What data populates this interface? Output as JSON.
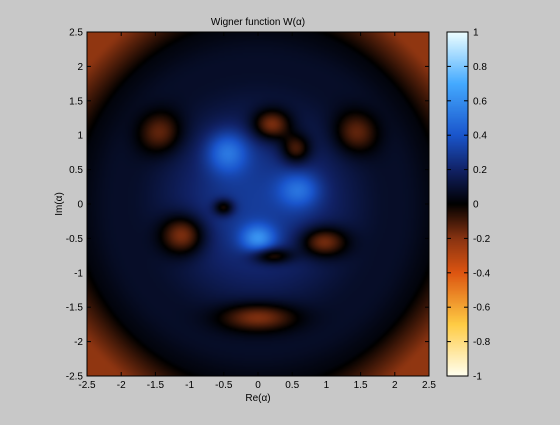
{
  "chart_data": {
    "type": "heatmap",
    "title": "Wigner function W(α)",
    "xlabel": "Re(α)",
    "ylabel": "Im(α)",
    "xlim": [
      -2.5,
      2.5
    ],
    "ylim": [
      -2.5,
      2.5
    ],
    "x_ticks": [
      "-2.5",
      "-2",
      "-1.5",
      "-1",
      "-0.5",
      "0",
      "0.5",
      "1",
      "1.5",
      "2",
      "2.5"
    ],
    "y_ticks": [
      "-2.5",
      "-2",
      "-1.5",
      "-1",
      "-0.5",
      "0",
      "0.5",
      "1",
      "1.5",
      "2",
      "2.5"
    ],
    "colorbar": {
      "ticks": [
        "-1",
        "-0.8",
        "-0.6",
        "-0.4",
        "-0.2",
        "0",
        "0.2",
        "0.4",
        "0.6",
        "0.8",
        "1"
      ],
      "range": [
        -1,
        1
      ],
      "colors": {
        "-1": "#fffff0",
        "-0.7": "#ffcc44",
        "-0.4": "#dd5511",
        "-0.2": "#883311",
        "0": "#000000",
        "0.2": "#112266",
        "0.4": "#1a55cc",
        "0.7": "#44aaff",
        "1": "#eeffff"
      }
    },
    "features": [
      {
        "kind": "ring",
        "radius": 2.3,
        "width": 0.35,
        "value": 0.08
      },
      {
        "kind": "blob",
        "x": 0.0,
        "y": 0.0,
        "sx": 1.6,
        "sy": 1.6,
        "value": 0.3
      },
      {
        "kind": "blob",
        "x": 0.2,
        "y": 1.15,
        "sx": 0.28,
        "sy": 0.22,
        "value": -0.35
      },
      {
        "kind": "blob",
        "x": 0.55,
        "y": 0.8,
        "sx": 0.22,
        "sy": 0.22,
        "value": -0.3
      },
      {
        "kind": "blob",
        "x": -1.45,
        "y": 1.05,
        "sx": 0.32,
        "sy": 0.3,
        "value": -0.25
      },
      {
        "kind": "blob",
        "x": 1.45,
        "y": 1.05,
        "sx": 0.32,
        "sy": 0.3,
        "value": -0.25
      },
      {
        "kind": "blob",
        "x": -1.1,
        "y": -0.45,
        "sx": 0.32,
        "sy": 0.28,
        "value": -0.35
      },
      {
        "kind": "blob",
        "x": -0.5,
        "y": -0.05,
        "sx": 0.15,
        "sy": 0.12,
        "value": -0.3
      },
      {
        "kind": "blob",
        "x": 0.95,
        "y": -0.55,
        "sx": 0.35,
        "sy": 0.22,
        "value": -0.35
      },
      {
        "kind": "blob",
        "x": 0.2,
        "y": -0.75,
        "sx": 0.3,
        "sy": 0.12,
        "value": -0.3
      },
      {
        "kind": "blob",
        "x": -0.45,
        "y": 0.75,
        "sx": 0.3,
        "sy": 0.3,
        "value": 0.3
      },
      {
        "kind": "blob",
        "x": 0.6,
        "y": 0.2,
        "sx": 0.3,
        "sy": 0.25,
        "value": 0.25
      },
      {
        "kind": "blob",
        "x": 0.0,
        "y": -0.5,
        "sx": 0.25,
        "sy": 0.2,
        "value": 0.35
      },
      {
        "kind": "blob",
        "x": 0.0,
        "y": -1.65,
        "sx": 0.55,
        "sy": 0.2,
        "value": -0.3
      }
    ]
  }
}
